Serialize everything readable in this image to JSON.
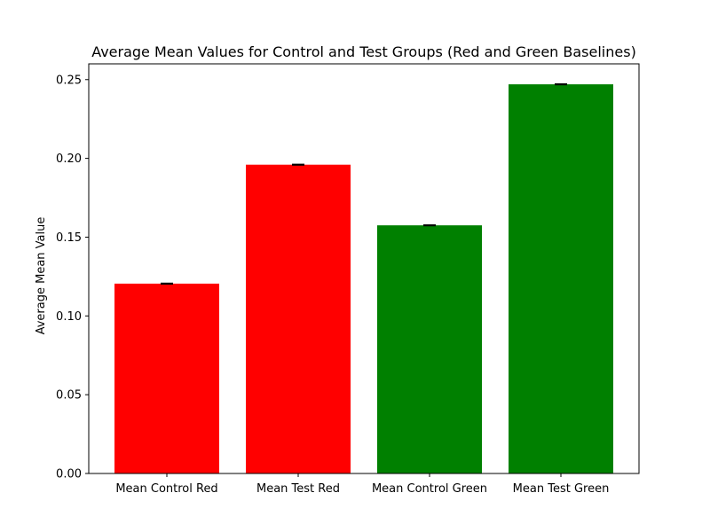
{
  "chart_data": {
    "type": "bar",
    "title": "Average Mean Values for Control and Test Groups (Red and Green Baselines)",
    "xlabel": "",
    "ylabel": "Average Mean Value",
    "categories": [
      "Mean Control Red",
      "Mean Test Red",
      "Mean Control Green",
      "Mean Test Green"
    ],
    "values": [
      0.1205,
      0.196,
      0.1575,
      0.247
    ],
    "errors": [
      0.0002,
      0.0002,
      0.0002,
      0.0002
    ],
    "colors": [
      "#ff0000",
      "#ff0000",
      "#008000",
      "#008000"
    ],
    "ylim": [
      0,
      0.26
    ],
    "yticks": [
      0.0,
      0.05,
      0.1,
      0.15,
      0.2,
      0.25
    ],
    "ytick_labels": [
      "0.00",
      "0.05",
      "0.10",
      "0.15",
      "0.20",
      "0.25"
    ],
    "grid": false
  }
}
